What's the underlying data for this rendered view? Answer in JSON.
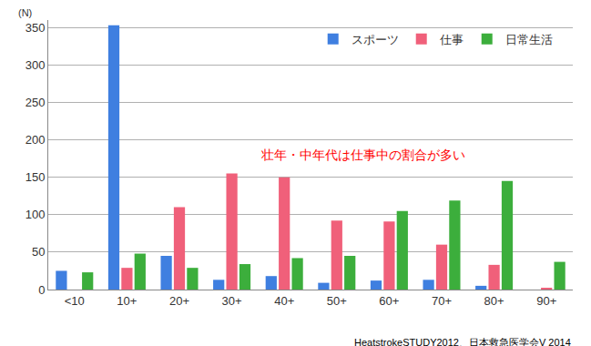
{
  "chart_data": {
    "type": "bar",
    "ylabel": "(N)",
    "categories": [
      "<10",
      "10+",
      "20+",
      "30+",
      "40+",
      "50+",
      "60+",
      "70+",
      "80+",
      "90+"
    ],
    "series": [
      {
        "name": "スポーツ",
        "color": "#3f7fe0",
        "values": [
          25,
          353,
          45,
          13,
          18,
          9,
          12,
          13,
          5,
          0
        ]
      },
      {
        "name": "仕事",
        "color": "#f0607a",
        "values": [
          0,
          29,
          110,
          155,
          150,
          92,
          91,
          60,
          33,
          2
        ]
      },
      {
        "name": "日常生活",
        "color": "#3cae3c",
        "values": [
          23,
          48,
          29,
          34,
          42,
          45,
          105,
          119,
          145,
          37
        ]
      }
    ],
    "ylim": [
      0,
      360
    ],
    "yticks": [
      0,
      50,
      100,
      150,
      200,
      250,
      300,
      350
    ],
    "grid": true,
    "legend": "top right",
    "annotations": [
      "壮年・中年代は仕事中の割合が多い"
    ],
    "source": "HeatstrokeSTUDY2012、日本救急医学会V 2014"
  }
}
